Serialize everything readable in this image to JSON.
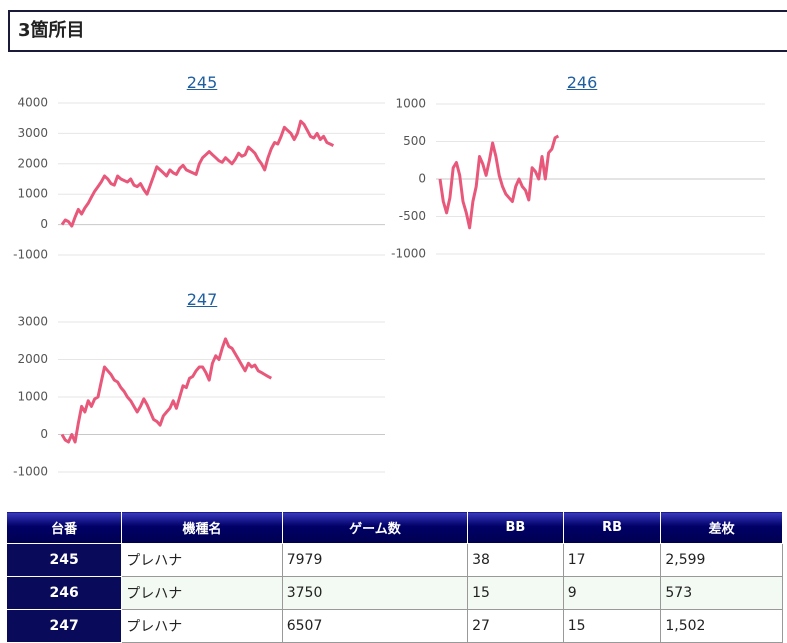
{
  "header": {
    "title": "3箇所目"
  },
  "chart_data": [
    {
      "type": "line",
      "title": "245",
      "color": "#e8587a",
      "ylim": [
        -1000,
        4000
      ],
      "yticks": [
        -1000,
        0,
        1000,
        2000,
        3000,
        4000
      ],
      "grid": true,
      "values": [
        0,
        150,
        100,
        -50,
        250,
        500,
        350,
        550,
        700,
        900,
        1100,
        1250,
        1400,
        1600,
        1500,
        1350,
        1300,
        1600,
        1500,
        1450,
        1400,
        1500,
        1300,
        1250,
        1350,
        1150,
        1000,
        1300,
        1600,
        1900,
        1800,
        1700,
        1600,
        1800,
        1700,
        1650,
        1850,
        1950,
        1800,
        1750,
        1700,
        1650,
        2000,
        2200,
        2300,
        2400,
        2300,
        2200,
        2100,
        2050,
        2200,
        2100,
        2000,
        2150,
        2350,
        2250,
        2300,
        2550,
        2450,
        2350,
        2150,
        2000,
        1800,
        2200,
        2500,
        2700,
        2650,
        2900,
        3200,
        3100,
        3000,
        2800,
        3000,
        3400,
        3300,
        3100,
        2900,
        2850,
        3000,
        2800,
        2900,
        2700,
        2650,
        2599
      ]
    },
    {
      "type": "line",
      "title": "246",
      "color": "#e8587a",
      "ylim": [
        -1000,
        1000
      ],
      "yticks": [
        -1000,
        -500,
        0,
        500,
        1000
      ],
      "grid": true,
      "values": [
        0,
        -300,
        -450,
        -250,
        150,
        220,
        50,
        -300,
        -450,
        -650,
        -300,
        -100,
        300,
        200,
        50,
        250,
        480,
        300,
        50,
        -100,
        -200,
        -250,
        -300,
        -100,
        0,
        -100,
        -150,
        -280,
        150,
        100,
        0,
        300,
        0,
        350,
        400,
        550,
        573
      ]
    },
    {
      "type": "line",
      "title": "247",
      "color": "#e8587a",
      "ylim": [
        -1000,
        3000
      ],
      "yticks": [
        -1000,
        0,
        1000,
        2000,
        3000
      ],
      "grid": true,
      "values": [
        0,
        -150,
        -200,
        0,
        -200,
        300,
        750,
        600,
        900,
        750,
        950,
        1000,
        1400,
        1800,
        1700,
        1600,
        1450,
        1400,
        1250,
        1150,
        1000,
        900,
        750,
        600,
        750,
        950,
        800,
        600,
        400,
        350,
        250,
        500,
        600,
        700,
        900,
        700,
        1000,
        1300,
        1250,
        1500,
        1550,
        1700,
        1800,
        1800,
        1650,
        1450,
        1900,
        2100,
        2000,
        2300,
        2550,
        2350,
        2300,
        2150,
        2000,
        1850,
        1700,
        1900,
        1800,
        1850,
        1700,
        1650,
        1600,
        1550,
        1502
      ]
    }
  ],
  "table": {
    "columns": [
      "台番",
      "機種名",
      "ゲーム数",
      "BB",
      "RB",
      "差枚"
    ],
    "rows": [
      [
        "245",
        "プレハナ",
        "7979",
        "38",
        "17",
        "2,599"
      ],
      [
        "246",
        "プレハナ",
        "3750",
        "15",
        "9",
        "573"
      ],
      [
        "247",
        "プレハナ",
        "6507",
        "27",
        "15",
        "1,502"
      ]
    ]
  }
}
